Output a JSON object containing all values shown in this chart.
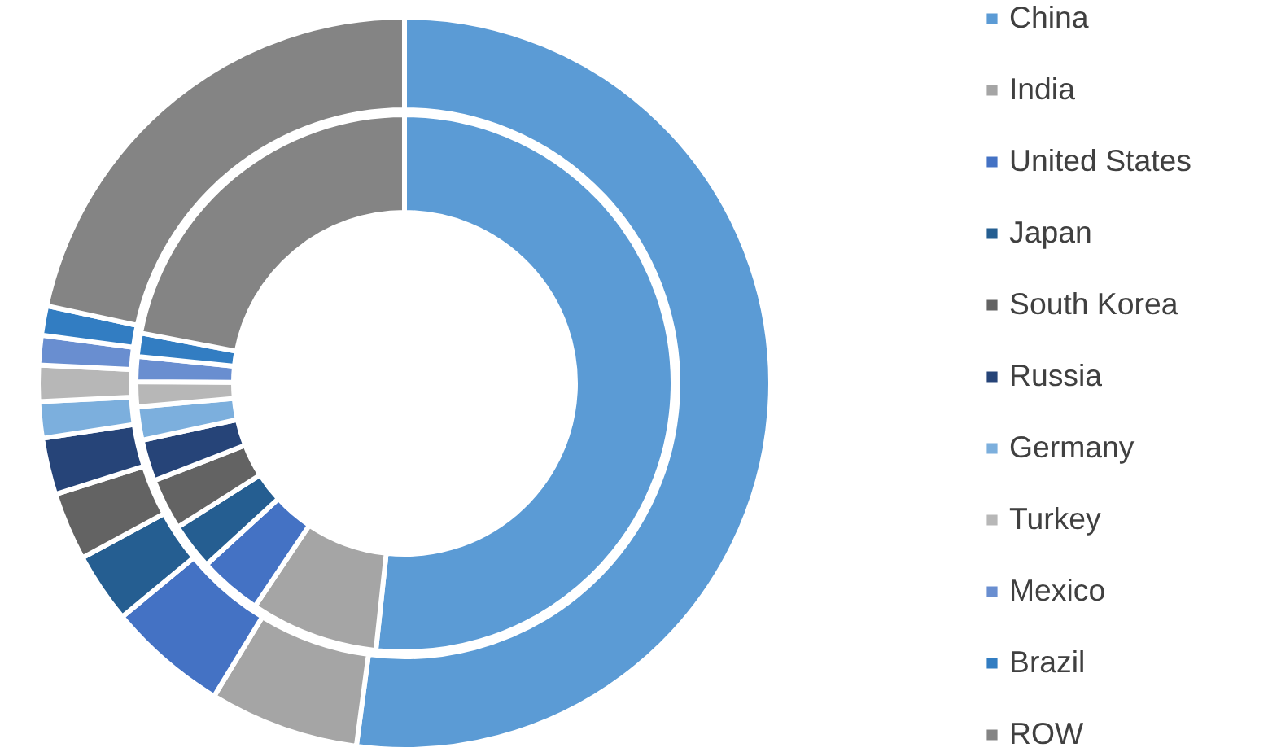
{
  "chart_data": {
    "type": "donut",
    "categories": [
      "China",
      "India",
      "United States",
      "Japan",
      "South Korea",
      "Russia",
      "Germany",
      "Turkey",
      "Mexico",
      "Brazil",
      "ROW"
    ],
    "colors": [
      "#5b9bd5",
      "#a5a5a5",
      "#4472c4",
      "#255e91",
      "#636363",
      "#264478",
      "#7cafdd",
      "#b7b7b7",
      "#698ed0",
      "#327dc2",
      "#848484"
    ],
    "series": [
      {
        "values": [
          51.7,
          7.7,
          3.8,
          2.8,
          3.1,
          2.5,
          2.0,
          1.5,
          1.5,
          1.4,
          22.0
        ]
      },
      {
        "values": [
          52.1,
          6.6,
          5.3,
          3.1,
          3.0,
          2.5,
          1.6,
          1.6,
          1.3,
          1.3,
          21.6
        ]
      }
    ],
    "legend": "right"
  }
}
